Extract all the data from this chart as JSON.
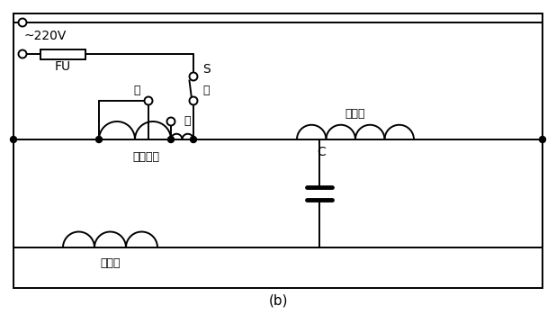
{
  "title": "(b)",
  "voltage_label": "~220V",
  "fuse_label": "FU",
  "switch_label": "S",
  "low_label": "低",
  "mid_label": "中",
  "high_label": "高",
  "aux_winding_label": "辅助绕组",
  "sub_winding_label": "副绕组",
  "main_winding_label": "主绕组",
  "capacitor_label": "C",
  "bg_color": "#ffffff",
  "line_color": "#000000",
  "border_color": "#000000",
  "lw": 1.4,
  "dot_r": 3.5,
  "open_r": 4.5
}
